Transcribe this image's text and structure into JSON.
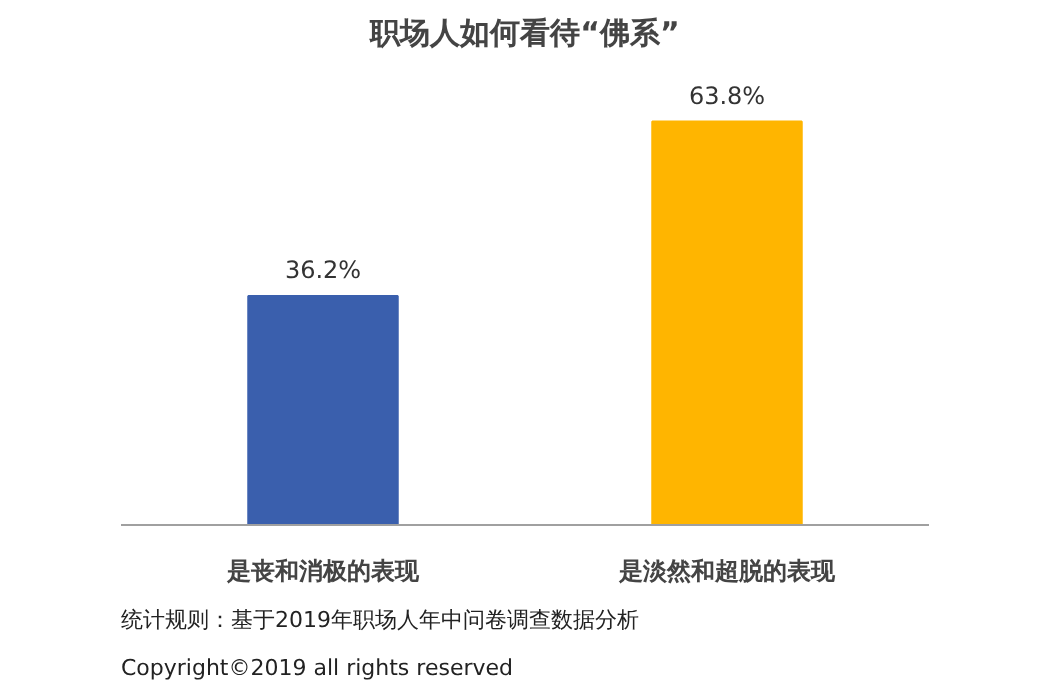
{
  "chart_data": {
    "type": "bar",
    "title": "职场人如何看待“佛系”",
    "categories": [
      "是丧和消极的表现",
      "是淡然和超脱的表现"
    ],
    "values": [
      36.2,
      63.8
    ],
    "colors": [
      "#3a5fad",
      "#ffb500"
    ],
    "value_labels": [
      "36.2%",
      "63.8%"
    ],
    "grid": false,
    "annotations": [
      "统计规则：基于2019年职场人年中问卷调查数据分析",
      "Copyright©2019 all rights reserved"
    ]
  }
}
